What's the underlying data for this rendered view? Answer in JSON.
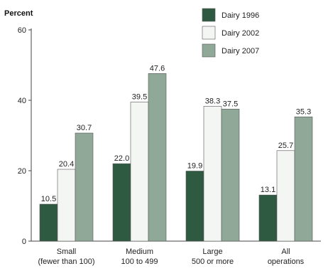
{
  "chart_data": {
    "type": "bar",
    "ylabel": "Percent",
    "ylim": [
      0,
      60
    ],
    "yticks": [
      0,
      20,
      40,
      60
    ],
    "grid": false,
    "legend_position": "top-right",
    "categories": [
      [
        "Small",
        "(fewer than 100)"
      ],
      [
        "Medium",
        "100 to 499"
      ],
      [
        "Large",
        "500 or more"
      ],
      [
        "All",
        "operations"
      ]
    ],
    "series": [
      {
        "name": "Dairy 1996",
        "color": "#2d5a41",
        "values": [
          10.5,
          22.0,
          19.9,
          13.1
        ]
      },
      {
        "name": "Dairy 2002",
        "color": "#f4f6f4",
        "values": [
          20.4,
          39.5,
          38.3,
          25.7
        ]
      },
      {
        "name": "Dairy 2007",
        "color": "#8fa898",
        "values": [
          30.7,
          47.6,
          37.5,
          35.3
        ]
      }
    ]
  }
}
